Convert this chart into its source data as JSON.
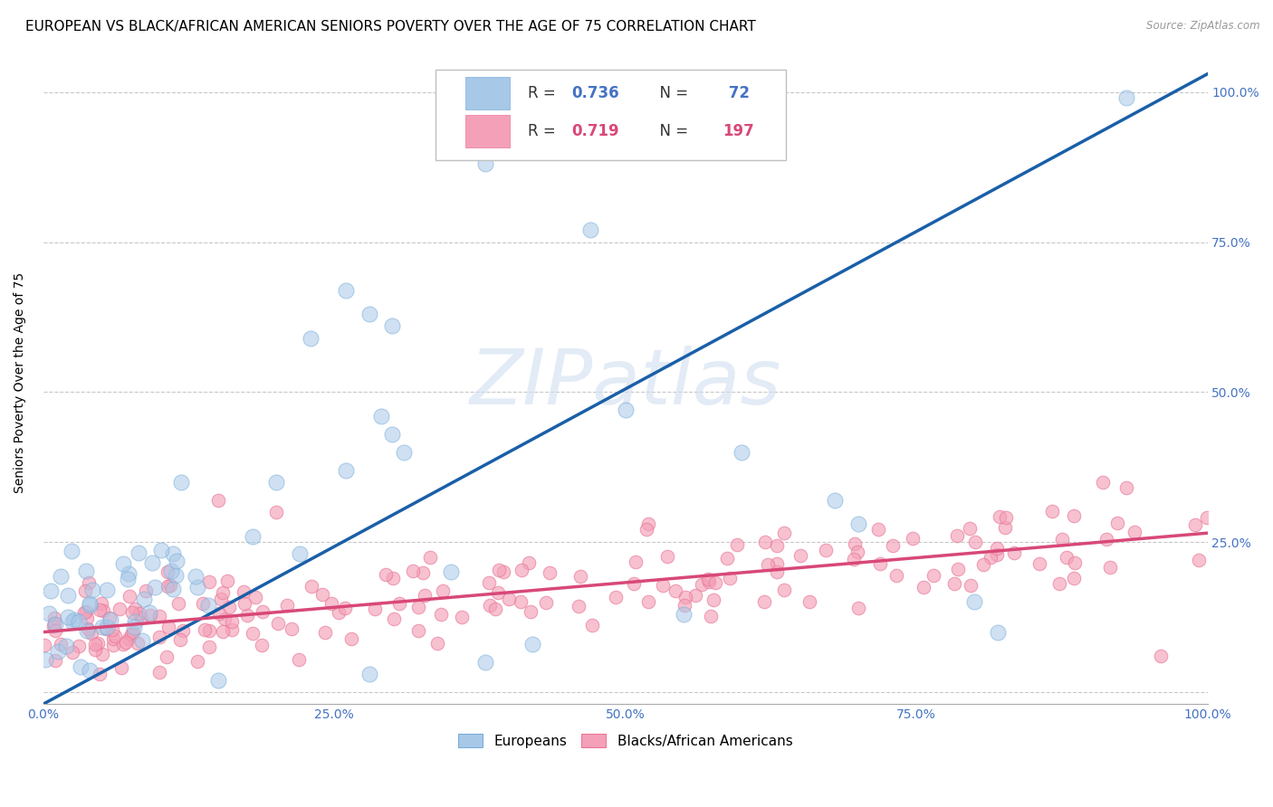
{
  "title": "EUROPEAN VS BLACK/AFRICAN AMERICAN SENIORS POVERTY OVER THE AGE OF 75 CORRELATION CHART",
  "source": "Source: ZipAtlas.com",
  "ylabel": "Seniors Poverty Over the Age of 75",
  "blue_R": 0.736,
  "blue_N": 72,
  "pink_R": 0.719,
  "pink_N": 197,
  "blue_color": "#a8c8e8",
  "blue_edge_color": "#7aafdb",
  "pink_color": "#f4a0b8",
  "pink_edge_color": "#e87898",
  "blue_line_color": "#1a5fa8",
  "pink_line_color": "#d84878",
  "watermark": "ZIPatlas",
  "xlim": [
    0,
    1
  ],
  "ylim": [
    -0.02,
    1.05
  ],
  "xticks": [
    0,
    0.25,
    0.5,
    0.75,
    1.0
  ],
  "yticks": [
    0,
    0.25,
    0.5,
    0.75,
    1.0
  ],
  "xticklabels": [
    "0.0%",
    "25.0%",
    "50.0%",
    "75.0%",
    "100.0%"
  ],
  "right_yticklabels": [
    "",
    "25.0%",
    "50.0%",
    "75.0%",
    "100.0%"
  ],
  "background_color": "#ffffff",
  "grid_color": "#c8c8c8",
  "title_fontsize": 11,
  "axis_label_fontsize": 10,
  "tick_fontsize": 10,
  "legend_fontsize": 12,
  "blue_line_x0": 0.0,
  "blue_line_y0": -0.02,
  "blue_line_x1": 1.0,
  "blue_line_y1": 1.03,
  "pink_line_x0": 0.0,
  "pink_line_y0": 0.1,
  "pink_line_x1": 1.0,
  "pink_line_y1": 0.265
}
